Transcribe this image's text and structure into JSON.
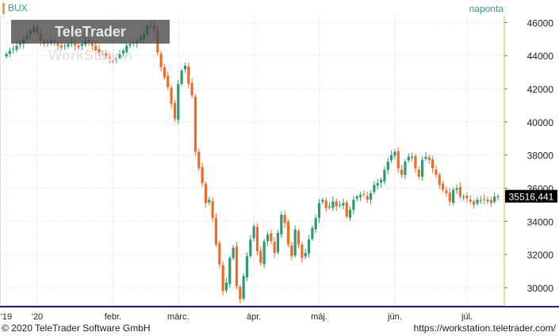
{
  "header": {
    "symbol": "BUX",
    "period": "naponta"
  },
  "watermark": "TeleTrader WorkStation",
  "footer": {
    "copyright": "© 2020 TeleTrader Software GmbH",
    "url": "https://workstation.teletrader.com/"
  },
  "colors": {
    "up": "#2a9d6e",
    "down": "#f26b21",
    "axis_accent": "#1a237e",
    "price_tag_bg": "#000000",
    "grid": "#d9d9d9",
    "axis_border": "#c9c232"
  },
  "chart_data": {
    "type": "candlestick",
    "last_price_label": "35516,441",
    "last_price": 35516.441,
    "ylim": [
      28900,
      46400
    ],
    "y_ticks": [
      30000,
      32000,
      34000,
      36000,
      38000,
      40000,
      42000,
      44000,
      46000
    ],
    "y_tick_labels": [
      "30000",
      "32000",
      "34000",
      "36000",
      "38000",
      "40000",
      "42000",
      "44000",
      "46000"
    ],
    "x_labels": [
      "'19",
      "'20",
      "febr.",
      "márc.",
      "ápr.",
      "máj.",
      "jún.",
      "júl."
    ],
    "x_label_index": [
      0,
      9,
      31,
      50,
      72,
      91,
      113,
      134
    ],
    "closes": [
      44100,
      44300,
      44400,
      44600,
      44800,
      45000,
      45200,
      45500,
      45700,
      45400,
      44900,
      44700,
      44800,
      44900,
      44800,
      44600,
      44500,
      44600,
      44700,
      44800,
      44600,
      44500,
      44700,
      44900,
      44800,
      44600,
      44300,
      44200,
      44100,
      44000,
      43800,
      43700,
      43900,
      44100,
      44300,
      44600,
      44700,
      44800,
      44900,
      45100,
      45300,
      45800,
      45900,
      45500,
      44200,
      43300,
      42700,
      42100,
      41100,
      40200,
      42300,
      43100,
      43400,
      42300,
      41600,
      38200,
      37200,
      36300,
      35100,
      35300,
      34200,
      32600,
      31400,
      29800,
      30300,
      31800,
      32400,
      30100,
      29300,
      30700,
      31900,
      32900,
      33700,
      32200,
      31500,
      32800,
      33200,
      32800,
      32100,
      33300,
      34400,
      33900,
      32600,
      31900,
      33500,
      32600,
      31800,
      32100,
      32900,
      33600,
      34200,
      35100,
      35300,
      34800,
      34900,
      35200,
      34900,
      35000,
      35100,
      34300,
      34700,
      35300,
      35500,
      35600,
      35600,
      35300,
      35700,
      36200,
      36300,
      36500,
      37100,
      37600,
      38000,
      38200,
      37200,
      36800,
      37600,
      37900,
      37900,
      37200,
      36700,
      37700,
      37900,
      37700,
      37200,
      36800,
      36200,
      35900,
      35700,
      35200,
      35900,
      36000,
      35500,
      35500,
      35400,
      35200,
      35000,
      35300,
      35300,
      35300,
      35300,
      35100,
      35500,
      35516
    ]
  }
}
